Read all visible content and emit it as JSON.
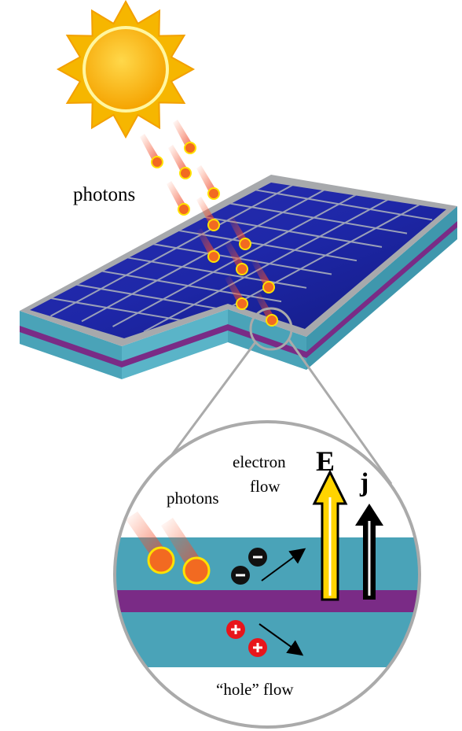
{
  "labels": {
    "photons_top": "photons",
    "electron_flow": [
      "electron",
      "flow"
    ],
    "field": "E",
    "current": "j",
    "photons_inset": "photons",
    "hole_flow": "“hole” flow"
  }
}
